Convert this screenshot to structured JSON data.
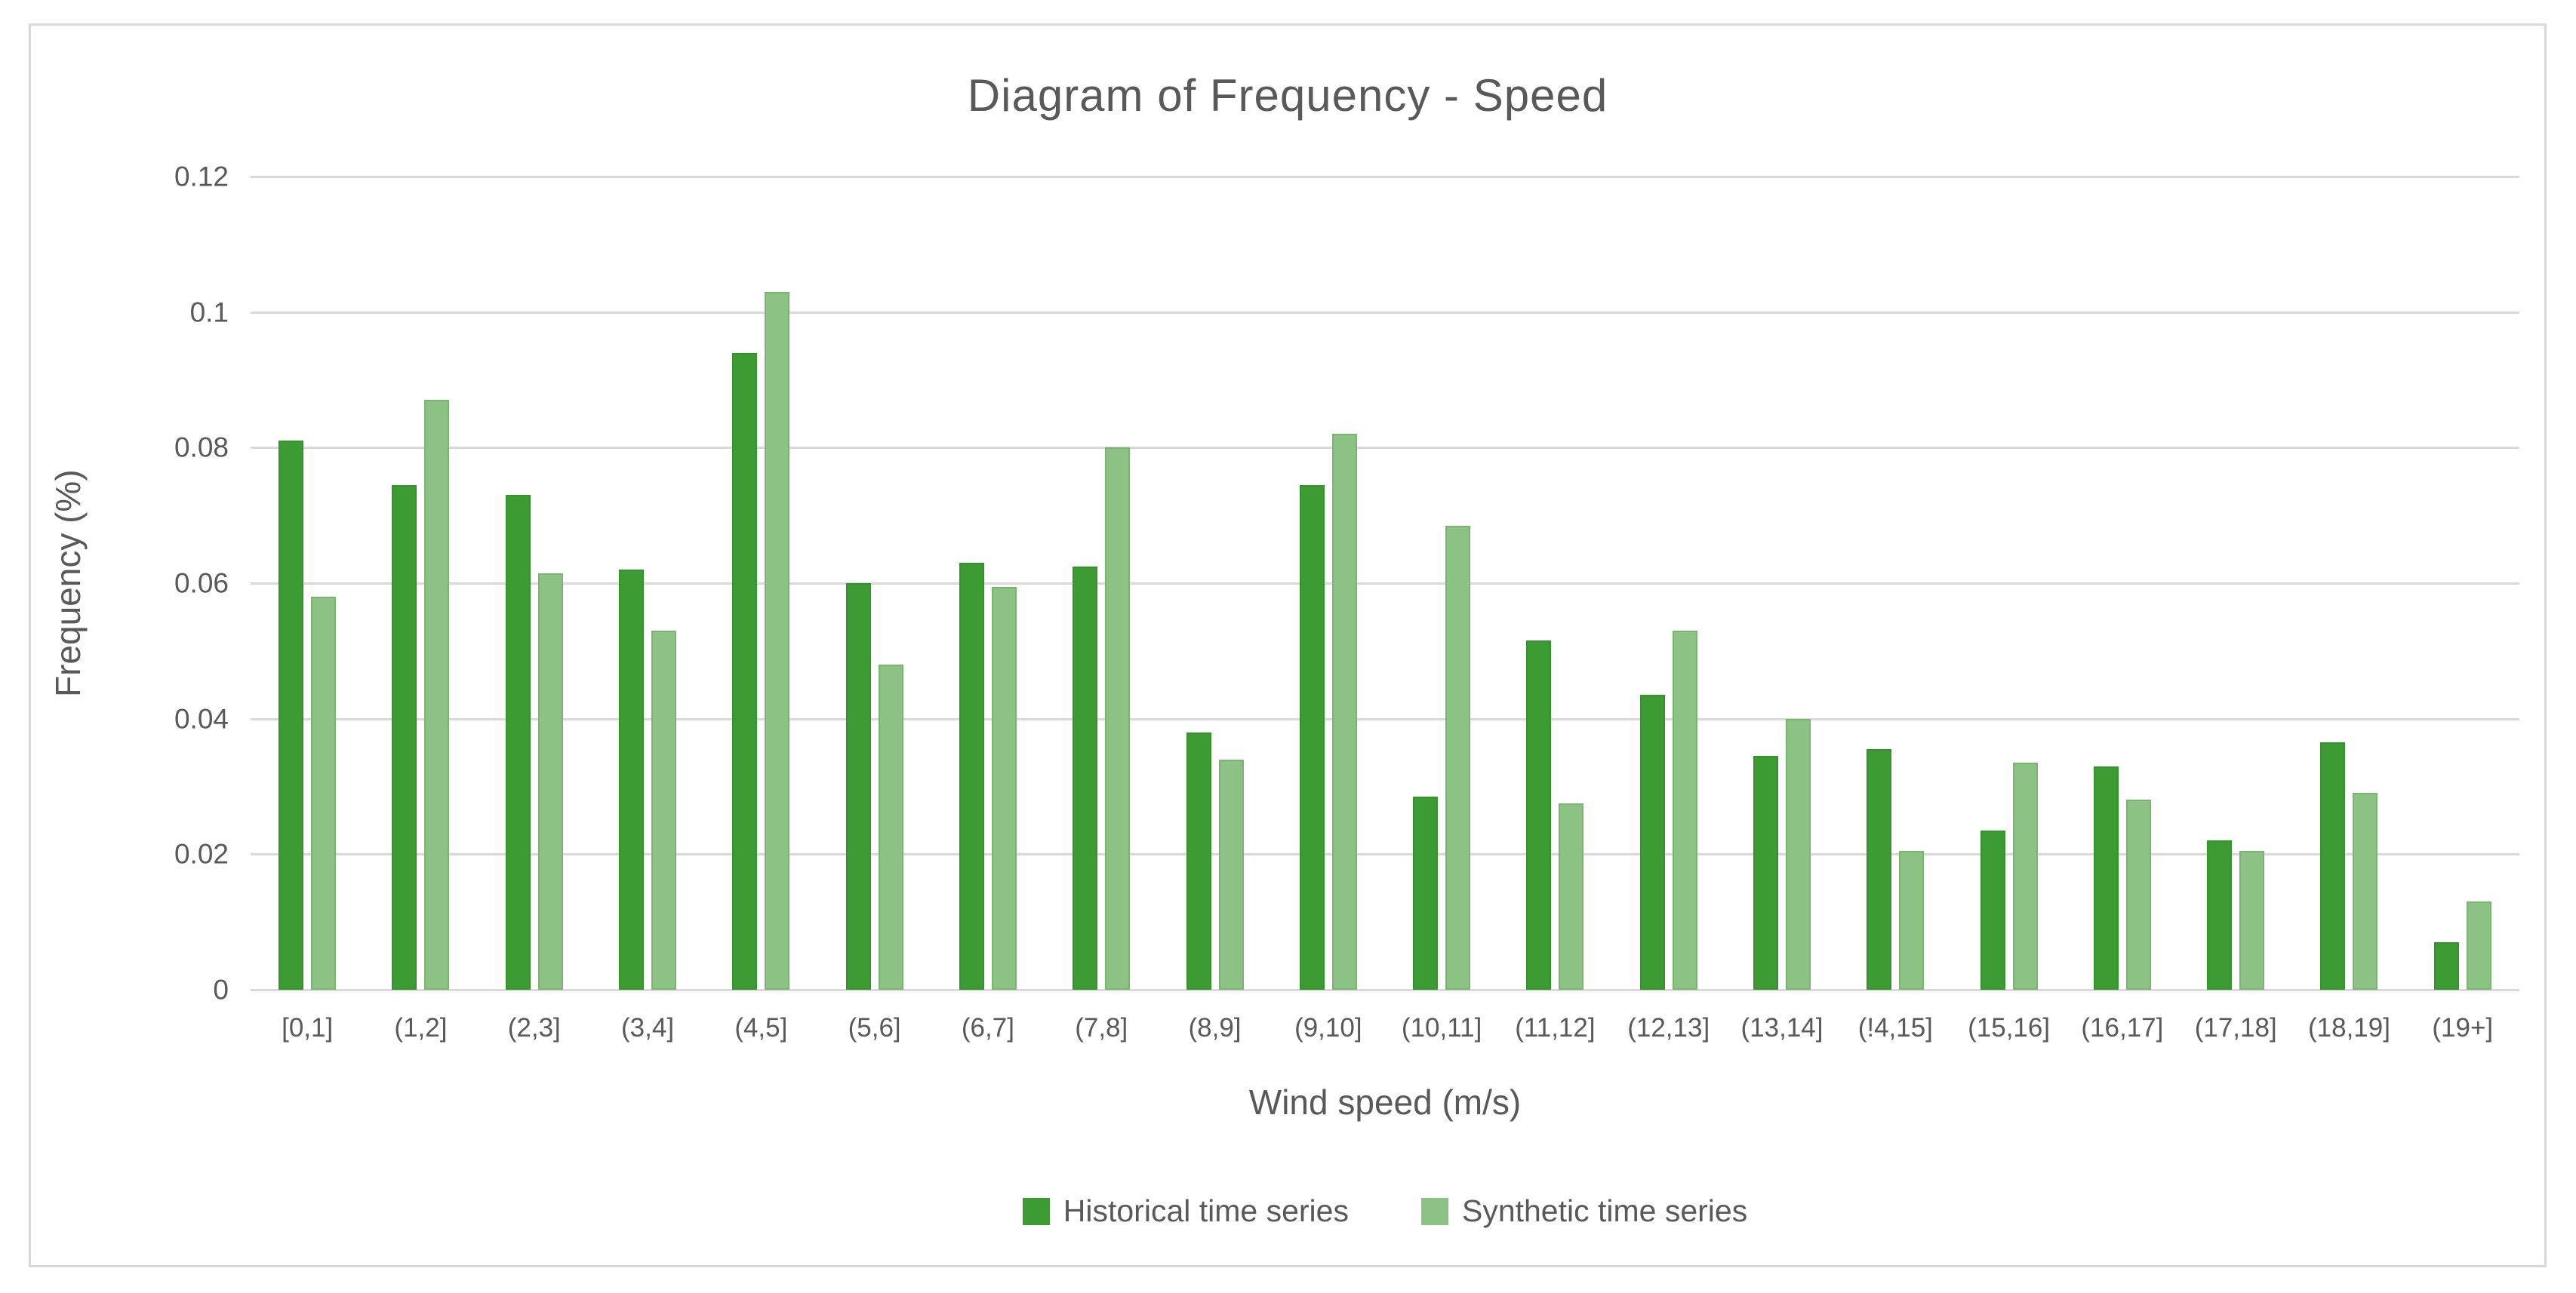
{
  "chart_data": {
    "type": "bar",
    "title": "Diagram of Frequency - Speed",
    "xlabel": "Wind speed (m/s)",
    "ylabel": "Frequency (%)",
    "ylim": [
      0,
      0.12
    ],
    "ytick_labels": [
      "0.12",
      "0.1",
      "0.08",
      "0.06",
      "0.04",
      "0.02",
      "0"
    ],
    "grid": "horizontal",
    "legend_position": "bottom",
    "categories": [
      "[0,1]",
      "(1,2]",
      "(2,3]",
      "(3,4]",
      "(4,5]",
      "(5,6]",
      "(6,7]",
      "(7,8]",
      "(8,9]",
      "(9,10]",
      "(10,11]",
      "(11,12]",
      "(12,13]",
      "(13,14]",
      "(!4,15]",
      "(15,16]",
      "(16,17]",
      "(17,18]",
      "(18,19]",
      "(19+]"
    ],
    "series": [
      {
        "name": "Historical time series",
        "color": "#3d9b33",
        "values": [
          0.081,
          0.0745,
          0.073,
          0.062,
          0.094,
          0.06,
          0.063,
          0.0625,
          0.038,
          0.0745,
          0.0285,
          0.0515,
          0.0435,
          0.0345,
          0.0355,
          0.0235,
          0.033,
          0.022,
          0.0365,
          0.007
        ]
      },
      {
        "name": "Synthetic time series",
        "color": "#8cc284",
        "values": [
          0.058,
          0.087,
          0.0615,
          0.053,
          0.103,
          0.048,
          0.0595,
          0.08,
          0.034,
          0.082,
          0.0685,
          0.0275,
          0.053,
          0.04,
          0.0205,
          0.0335,
          0.028,
          0.0205,
          0.029,
          0.013
        ]
      }
    ],
    "colors": {
      "text": "#595959",
      "gridline": "#d9d9d9",
      "frame_border": "#d9d9d9",
      "background": "#ffffff"
    }
  }
}
